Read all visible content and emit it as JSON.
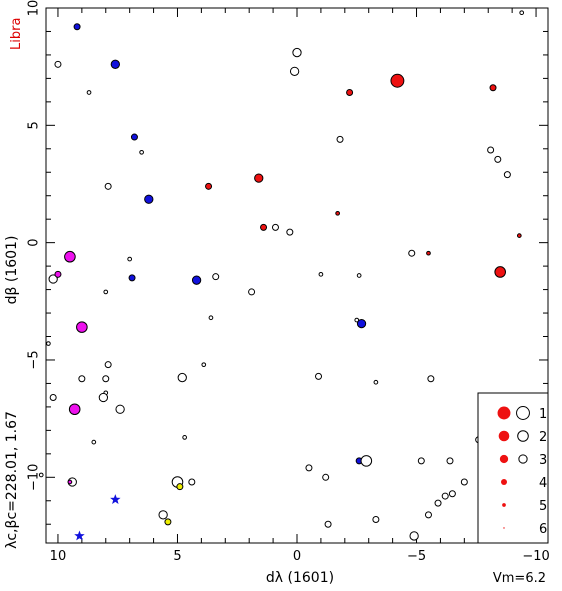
{
  "chart_data": {
    "type": "scatter",
    "title": "Libra",
    "title_color": "#dd0000",
    "xlabel": "dλ (1601)",
    "ylabel": "dβ (1601)",
    "side_label": "λc,βc=228.01, 1.67",
    "vm_label": "Vm=6.2",
    "xlim": [
      10.5,
      -10.5
    ],
    "ylim": [
      -12.8,
      10
    ],
    "x_ticks": [
      10,
      5,
      0,
      -5,
      -10
    ],
    "x_tick_labels": [
      "10",
      "5",
      "0",
      "−5",
      "−10"
    ],
    "y_ticks": [
      10,
      5,
      0,
      -5,
      -10
    ],
    "y_tick_labels": [
      "10",
      "5",
      "0",
      "−5",
      "−10"
    ],
    "grid": false,
    "legend_position": "bottom-right",
    "colors": {
      "red": "#ee1111",
      "blue": "#1111dd",
      "magenta": "#ee11ee",
      "yellow": "#eeee00"
    },
    "legend": [
      {
        "label": "1",
        "magnitude": 1
      },
      {
        "label": "2",
        "magnitude": 2
      },
      {
        "label": "3",
        "magnitude": 3
      },
      {
        "label": "4",
        "magnitude": 4
      },
      {
        "label": "5",
        "magnitude": 5
      },
      {
        "label": "6",
        "magnitude": 6
      }
    ],
    "stars": [
      {
        "x": 9.2,
        "y": 9.2,
        "mag": 4,
        "fill": "blue"
      },
      {
        "x": 10.0,
        "y": 7.6,
        "mag": 4,
        "fill": "none"
      },
      {
        "x": 7.6,
        "y": 7.6,
        "mag": 3,
        "fill": "blue"
      },
      {
        "x": 8.7,
        "y": 6.4,
        "mag": 5,
        "fill": "none"
      },
      {
        "x": 6.8,
        "y": 4.5,
        "mag": 4,
        "fill": "blue"
      },
      {
        "x": 6.5,
        "y": 3.85,
        "mag": 5,
        "fill": "none"
      },
      {
        "x": 7.9,
        "y": 2.4,
        "mag": 4,
        "fill": "none"
      },
      {
        "x": 6.2,
        "y": 1.85,
        "mag": 3,
        "fill": "blue"
      },
      {
        "x": 3.7,
        "y": 2.4,
        "mag": 4,
        "fill": "red"
      },
      {
        "x": 1.6,
        "y": 2.75,
        "mag": 3,
        "fill": "red"
      },
      {
        "x": 0.0,
        "y": 8.1,
        "mag": 3,
        "fill": "none"
      },
      {
        "x": 0.1,
        "y": 7.3,
        "mag": 3,
        "fill": "none"
      },
      {
        "x": -2.2,
        "y": 6.4,
        "mag": 4,
        "fill": "red"
      },
      {
        "x": -4.2,
        "y": 6.9,
        "mag": 1,
        "fill": "red"
      },
      {
        "x": -1.8,
        "y": 4.4,
        "mag": 4,
        "fill": "none"
      },
      {
        "x": -8.2,
        "y": 6.6,
        "mag": 4,
        "fill": "red"
      },
      {
        "x": -9.4,
        "y": 9.8,
        "mag": 5,
        "fill": "none"
      },
      {
        "x": -8.1,
        "y": 3.95,
        "mag": 4,
        "fill": "none"
      },
      {
        "x": -8.4,
        "y": 3.55,
        "mag": 4,
        "fill": "none"
      },
      {
        "x": -8.8,
        "y": 2.9,
        "mag": 4,
        "fill": "none"
      },
      {
        "x": -1.7,
        "y": 1.25,
        "mag": 5,
        "fill": "red"
      },
      {
        "x": 1.4,
        "y": 0.65,
        "mag": 4,
        "fill": "red"
      },
      {
        "x": 0.9,
        "y": 0.65,
        "mag": 4,
        "fill": "none"
      },
      {
        "x": 0.3,
        "y": 0.45,
        "mag": 4,
        "fill": "none"
      },
      {
        "x": -9.3,
        "y": 0.3,
        "mag": 5,
        "fill": "red"
      },
      {
        "x": -4.8,
        "y": -0.45,
        "mag": 4,
        "fill": "none"
      },
      {
        "x": -5.5,
        "y": -0.45,
        "mag": 5,
        "fill": "red"
      },
      {
        "x": -8.5,
        "y": -1.25,
        "mag": 2,
        "fill": "red"
      },
      {
        "x": 9.5,
        "y": -0.6,
        "mag": 2,
        "fill": "magenta"
      },
      {
        "x": 10.2,
        "y": -1.55,
        "mag": 3,
        "fill": "none"
      },
      {
        "x": 10.0,
        "y": -1.35,
        "mag": 4,
        "fill": "magenta"
      },
      {
        "x": 7.0,
        "y": -0.7,
        "mag": 5,
        "fill": "none"
      },
      {
        "x": 6.9,
        "y": -1.5,
        "mag": 4,
        "fill": "blue"
      },
      {
        "x": 4.2,
        "y": -1.6,
        "mag": 3,
        "fill": "blue"
      },
      {
        "x": 3.4,
        "y": -1.45,
        "mag": 4,
        "fill": "none"
      },
      {
        "x": 1.9,
        "y": -2.1,
        "mag": 4,
        "fill": "none"
      },
      {
        "x": -1.0,
        "y": -1.35,
        "mag": 5,
        "fill": "none"
      },
      {
        "x": -2.6,
        "y": -1.4,
        "mag": 5,
        "fill": "none"
      },
      {
        "x": 8.0,
        "y": -2.1,
        "mag": 5,
        "fill": "none"
      },
      {
        "x": 9.0,
        "y": -3.6,
        "mag": 2,
        "fill": "magenta"
      },
      {
        "x": 3.6,
        "y": -3.2,
        "mag": 5,
        "fill": "none"
      },
      {
        "x": -2.5,
        "y": -3.3,
        "mag": 5,
        "fill": "none"
      },
      {
        "x": -2.7,
        "y": -3.45,
        "mag": 3,
        "fill": "blue"
      },
      {
        "x": 10.4,
        "y": -4.3,
        "mag": 5,
        "fill": "none"
      },
      {
        "x": 7.9,
        "y": -5.2,
        "mag": 4,
        "fill": "none"
      },
      {
        "x": 3.9,
        "y": -5.2,
        "mag": 5,
        "fill": "none"
      },
      {
        "x": 9.0,
        "y": -5.8,
        "mag": 4,
        "fill": "none"
      },
      {
        "x": 8.0,
        "y": -5.8,
        "mag": 4,
        "fill": "none"
      },
      {
        "x": 4.8,
        "y": -5.75,
        "mag": 3,
        "fill": "none"
      },
      {
        "x": -0.9,
        "y": -5.7,
        "mag": 4,
        "fill": "none"
      },
      {
        "x": -3.3,
        "y": -5.95,
        "mag": 5,
        "fill": "none"
      },
      {
        "x": -5.6,
        "y": -5.8,
        "mag": 4,
        "fill": "none"
      },
      {
        "x": 10.2,
        "y": -6.6,
        "mag": 4,
        "fill": "none"
      },
      {
        "x": 8.0,
        "y": -6.4,
        "mag": 5,
        "fill": "none"
      },
      {
        "x": 8.1,
        "y": -6.6,
        "mag": 3,
        "fill": "none"
      },
      {
        "x": 7.4,
        "y": -7.1,
        "mag": 3,
        "fill": "none"
      },
      {
        "x": 9.3,
        "y": -7.1,
        "mag": 2,
        "fill": "magenta"
      },
      {
        "x": -7.8,
        "y": -6.6,
        "mag": 5,
        "fill": "none"
      },
      {
        "x": 8.5,
        "y": -8.5,
        "mag": 5,
        "fill": "none"
      },
      {
        "x": 4.7,
        "y": -8.3,
        "mag": 5,
        "fill": "none"
      },
      {
        "x": -7.6,
        "y": -8.4,
        "mag": 4,
        "fill": "none"
      },
      {
        "x": 10.7,
        "y": -9.9,
        "mag": 5,
        "fill": "none"
      },
      {
        "x": 9.4,
        "y": -10.2,
        "mag": 3,
        "fill": "none"
      },
      {
        "x": 9.5,
        "y": -10.2,
        "mag": 5,
        "fill": "magenta"
      },
      {
        "x": -0.5,
        "y": -9.6,
        "mag": 4,
        "fill": "none"
      },
      {
        "x": -1.2,
        "y": -10.0,
        "mag": 4,
        "fill": "none"
      },
      {
        "x": -2.6,
        "y": -9.3,
        "mag": 4,
        "fill": "blue"
      },
      {
        "x": -2.9,
        "y": -9.3,
        "mag": 2,
        "fill": "none"
      },
      {
        "x": -5.2,
        "y": -9.3,
        "mag": 4,
        "fill": "none"
      },
      {
        "x": -6.4,
        "y": -9.3,
        "mag": 4,
        "fill": "none"
      },
      {
        "x": -7.0,
        "y": -10.2,
        "mag": 4,
        "fill": "none"
      },
      {
        "x": -6.5,
        "y": -10.7,
        "mag": 4,
        "fill": "none"
      },
      {
        "x": -6.2,
        "y": -10.8,
        "mag": 4,
        "fill": "none"
      },
      {
        "x": -5.9,
        "y": -11.1,
        "mag": 4,
        "fill": "none"
      },
      {
        "x": -5.5,
        "y": -11.6,
        "mag": 4,
        "fill": "none"
      },
      {
        "x": 5.0,
        "y": -10.2,
        "mag": 2,
        "fill": "none"
      },
      {
        "x": 4.9,
        "y": -10.4,
        "mag": 4,
        "fill": "yellow"
      },
      {
        "x": 4.4,
        "y": -10.2,
        "mag": 4,
        "fill": "none"
      },
      {
        "x": 5.6,
        "y": -11.6,
        "mag": 3,
        "fill": "none"
      },
      {
        "x": 5.4,
        "y": -11.9,
        "mag": 4,
        "fill": "yellow"
      },
      {
        "x": -1.3,
        "y": -12.0,
        "mag": 4,
        "fill": "none"
      },
      {
        "x": -3.3,
        "y": -11.8,
        "mag": 4,
        "fill": "none"
      },
      {
        "x": -4.9,
        "y": -12.5,
        "mag": 3,
        "fill": "none"
      }
    ],
    "markers": [
      {
        "x": 7.6,
        "y": -10.95,
        "symbol": "star",
        "fill": "blue"
      },
      {
        "x": 9.1,
        "y": -12.5,
        "symbol": "star",
        "fill": "blue"
      }
    ]
  }
}
